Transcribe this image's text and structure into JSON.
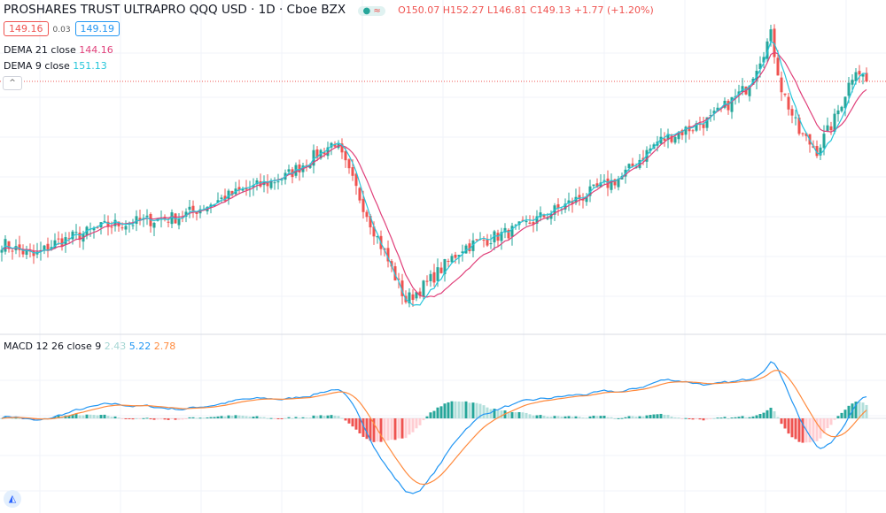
{
  "header": {
    "title": "PROSHARES TRUST ULTRAPRO QQQ USD · 1D · Cboe BZX",
    "open": "O150.07",
    "high": "H152.27",
    "low": "L146.81",
    "close": "C149.13",
    "change": "+1.77 (+1.20%)",
    "bid": "149.16",
    "spread": "0.03",
    "ask": "149.19",
    "status_dot": "●",
    "status_wave": "≈"
  },
  "indicators": {
    "dema21": {
      "label": "DEMA 21 close",
      "value": "144.16",
      "color": "#e0407a"
    },
    "dema9": {
      "label": "DEMA 9 close",
      "value": "151.13",
      "color": "#26c6da"
    },
    "macd": {
      "label": "MACD 12 26 close 9",
      "hist": "2.43",
      "macd": "5.22",
      "signal": "2.78",
      "hist_color": "#a5d6d3",
      "macd_color": "#2196f3",
      "signal_color": "#ff8a3d"
    }
  },
  "collapse_icon": "^",
  "logo_icon": "◭",
  "colors": {
    "up": "#26a69a",
    "down": "#ef5350",
    "grid": "#f0f3fa",
    "last_price": "#ef5350"
  },
  "chart_data": {
    "type": "candlestick",
    "bars": 245,
    "last_close": 149.13,
    "anchors": [
      [
        0,
        120.1
      ],
      [
        9,
        117.7
      ],
      [
        15,
        120.1
      ],
      [
        30,
        123.3
      ],
      [
        50,
        124.8
      ],
      [
        65,
        128.8
      ],
      [
        80,
        132.0
      ],
      [
        94,
        138.3
      ],
      [
        99,
        131.2
      ],
      [
        105,
        122.5
      ],
      [
        114,
        109.8
      ],
      [
        120,
        112.9
      ],
      [
        130,
        119.3
      ],
      [
        145,
        122.5
      ],
      [
        160,
        127.2
      ],
      [
        175,
        132.0
      ],
      [
        185,
        138.3
      ],
      [
        200,
        142.3
      ],
      [
        210,
        147.9
      ],
      [
        217,
        157.4
      ],
      [
        220,
        147.9
      ],
      [
        225,
        139.9
      ],
      [
        230,
        136.8
      ],
      [
        235,
        142.3
      ],
      [
        241,
        151.8
      ],
      [
        244,
        149.13
      ]
    ],
    "price_scale_per_dollar": null
  }
}
